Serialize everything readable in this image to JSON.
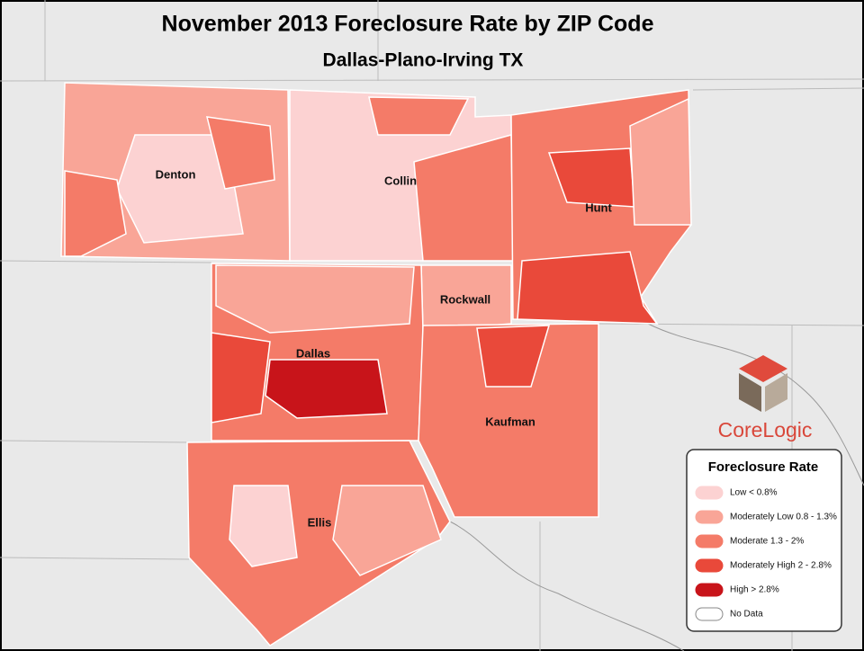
{
  "header": {
    "title": "November 2013 Foreclosure Rate by ZIP Code",
    "subtitle": "Dallas-Plano-Irving TX"
  },
  "counties": [
    {
      "label": "Denton"
    },
    {
      "label": "Collin"
    },
    {
      "label": "Hunt"
    },
    {
      "label": "Rockwall"
    },
    {
      "label": "Dallas"
    },
    {
      "label": "Kaufman"
    },
    {
      "label": "Ellis"
    }
  ],
  "logo": {
    "text": "CoreLogic"
  },
  "legend": {
    "title": "Foreclosure Rate",
    "items": [
      {
        "label": "Low  < 0.8%",
        "color": "#fcd2d2"
      },
      {
        "label": "Moderately Low  0.8 - 1.3%",
        "color": "#f9a597"
      },
      {
        "label": "Moderate  1.3 - 2%",
        "color": "#f47b68"
      },
      {
        "label": "Moderately High  2 - 2.8%",
        "color": "#e9493a"
      },
      {
        "label": "High  > 2.8%",
        "color": "#c8141a"
      },
      {
        "label": "No Data",
        "color": "#ffffff"
      }
    ]
  }
}
